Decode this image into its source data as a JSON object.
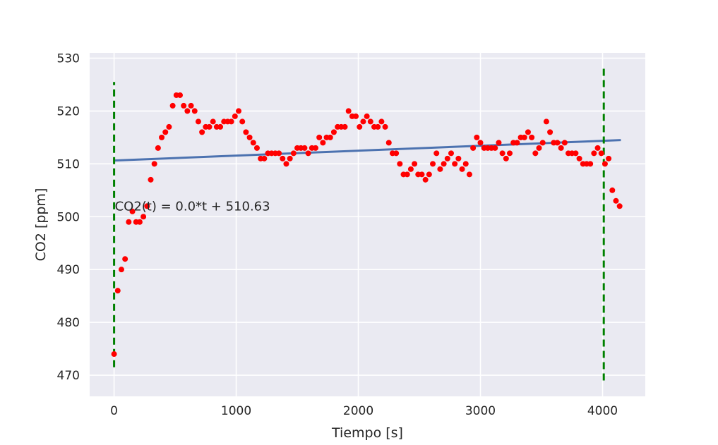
{
  "chart_data": {
    "type": "scatter",
    "title": "",
    "xlabel": "Tiempo [s]",
    "ylabel": "CO2 [ppm]",
    "xlim": [
      -200,
      4350
    ],
    "ylim": [
      466,
      531
    ],
    "xticks": [
      0,
      1000,
      2000,
      3000,
      4000
    ],
    "yticks": [
      470,
      480,
      490,
      500,
      510,
      520,
      530
    ],
    "grid": true,
    "legend": "none",
    "annotation": "CO2(t) = 0.0*t + 510.63",
    "colors": {
      "background": "#eaeaf2",
      "grid": "#ffffff",
      "points": "#ff0000",
      "fit_line": "#4c72b0",
      "vertical_markers": "#008000"
    },
    "series": [
      {
        "type": "scatter",
        "x": [
          0,
          30,
          60,
          90,
          120,
          150,
          180,
          210,
          240,
          270,
          300,
          330,
          360,
          390,
          420,
          450,
          480,
          510,
          540,
          570,
          600,
          630,
          660,
          690,
          720,
          750,
          780,
          810,
          840,
          870,
          900,
          930,
          960,
          990,
          1020,
          1050,
          1080,
          1110,
          1140,
          1170,
          1200,
          1230,
          1260,
          1290,
          1320,
          1350,
          1380,
          1410,
          1440,
          1470,
          1500,
          1530,
          1560,
          1590,
          1620,
          1650,
          1680,
          1710,
          1740,
          1770,
          1800,
          1830,
          1860,
          1890,
          1920,
          1950,
          1980,
          2010,
          2040,
          2070,
          2100,
          2130,
          2160,
          2190,
          2220,
          2250,
          2280,
          2310,
          2340,
          2370,
          2400,
          2430,
          2460,
          2490,
          2520,
          2550,
          2580,
          2610,
          2640,
          2670,
          2700,
          2730,
          2760,
          2790,
          2820,
          2850,
          2880,
          2910,
          2940,
          2970,
          3000,
          3030,
          3060,
          3090,
          3120,
          3150,
          3180,
          3210,
          3240,
          3270,
          3300,
          3330,
          3360,
          3390,
          3420,
          3450,
          3480,
          3510,
          3540,
          3570,
          3600,
          3630,
          3660,
          3690,
          3720,
          3750,
          3780,
          3810,
          3840,
          3870,
          3900,
          3930,
          3960,
          3990,
          4020,
          4050,
          4080,
          4110,
          4140
        ],
        "y": [
          474,
          486,
          490,
          492,
          499,
          501,
          499,
          499,
          500,
          502,
          507,
          510,
          513,
          515,
          516,
          517,
          521,
          523,
          523,
          521,
          520,
          521,
          520,
          518,
          516,
          517,
          517,
          518,
          517,
          517,
          518,
          518,
          518,
          519,
          520,
          518,
          516,
          515,
          514,
          513,
          511,
          511,
          512,
          512,
          512,
          512,
          511,
          510,
          511,
          512,
          513,
          513,
          513,
          512,
          513,
          513,
          515,
          514,
          515,
          515,
          516,
          517,
          517,
          517,
          520,
          519,
          519,
          517,
          518,
          519,
          518,
          517,
          517,
          518,
          517,
          514,
          512,
          512,
          510,
          508,
          508,
          509,
          510,
          508,
          508,
          507,
          508,
          510,
          512,
          509,
          510,
          511,
          512,
          510,
          511,
          509,
          510,
          508,
          513,
          515,
          514,
          513,
          513,
          513,
          513,
          514,
          512,
          511,
          512,
          514,
          514,
          515,
          515,
          516,
          515,
          512,
          513,
          514,
          518,
          516,
          514,
          514,
          513,
          514,
          512,
          512,
          512,
          511,
          510,
          510,
          510,
          512,
          513,
          512,
          510,
          511,
          505,
          503,
          502
        ]
      },
      {
        "type": "line",
        "name": "fit",
        "x": [
          0,
          4150
        ],
        "y": [
          510.63,
          514.5
        ]
      }
    ],
    "vlines": [
      {
        "x": 0,
        "ymin": 471.5,
        "ymax": 525.5
      },
      {
        "x": 4010,
        "ymin": 469,
        "ymax": 528
      }
    ]
  }
}
